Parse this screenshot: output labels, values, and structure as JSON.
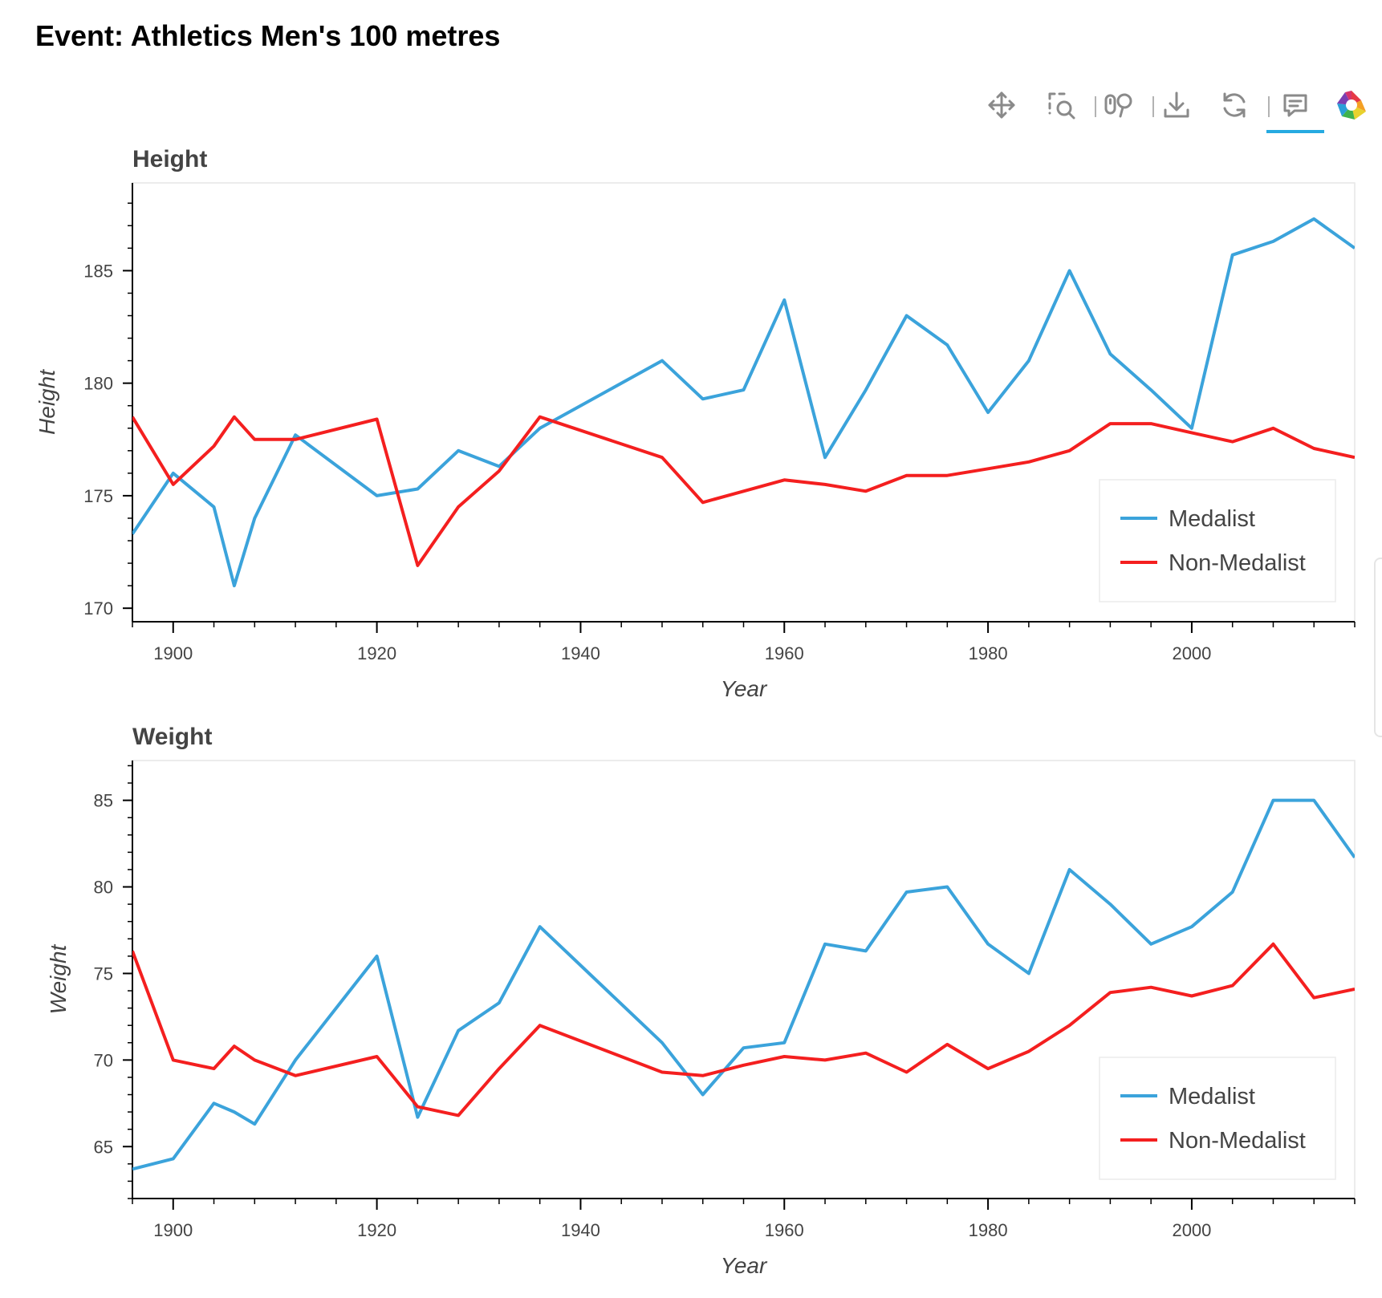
{
  "page_title": "Event: Athletics Men's 100 metres",
  "toolbar": {
    "tools": [
      {
        "icon": "pan-icon",
        "active": true
      },
      {
        "icon": "box-zoom-icon",
        "active": false
      },
      {
        "icon": "wheel-zoom-icon",
        "active": false
      },
      {
        "icon": "save-icon",
        "active": false
      },
      {
        "icon": "reset-icon",
        "active": false
      },
      {
        "icon": "hover-icon",
        "active": true
      },
      {
        "icon": "bokeh-logo-icon",
        "active": false
      }
    ]
  },
  "colors": {
    "medalist": "#3ba3db",
    "non_medalist": "#f41f1f",
    "accent": "#26aae1"
  },
  "chart_data": [
    {
      "type": "line",
      "title": "Height",
      "xlabel": "Year",
      "ylabel": "Height",
      "xlim": [
        1896,
        2016
      ],
      "ylim": [
        169.4,
        188.9
      ],
      "yticks": [
        170,
        175,
        180,
        185
      ],
      "xticks": [
        1900,
        1920,
        1940,
        1960,
        1980,
        2000
      ],
      "legend_position": "bottom-right",
      "series": [
        {
          "name": "Medalist",
          "color": "#3ba3db",
          "x": [
            1896,
            1900,
            1904,
            1906,
            1908,
            1912,
            1920,
            1924,
            1928,
            1932,
            1936,
            1948,
            1952,
            1956,
            1960,
            1964,
            1968,
            1972,
            1976,
            1980,
            1984,
            1988,
            1992,
            1996,
            2000,
            2004,
            2008,
            2012,
            2016
          ],
          "y": [
            173.3,
            176.0,
            174.5,
            171.0,
            174.0,
            177.7,
            175.0,
            175.3,
            177.0,
            176.3,
            178.0,
            181.0,
            179.3,
            179.7,
            183.7,
            176.7,
            179.7,
            183.0,
            181.7,
            178.7,
            181.0,
            185.0,
            181.3,
            179.7,
            178.0,
            185.7,
            186.3,
            187.3,
            186.0
          ]
        },
        {
          "name": "Non-Medalist",
          "color": "#f41f1f",
          "x": [
            1896,
            1900,
            1904,
            1906,
            1908,
            1912,
            1920,
            1924,
            1928,
            1932,
            1936,
            1948,
            1952,
            1956,
            1960,
            1964,
            1968,
            1972,
            1976,
            1980,
            1984,
            1988,
            1992,
            1996,
            2000,
            2004,
            2008,
            2012,
            2016
          ],
          "y": [
            178.5,
            175.5,
            177.2,
            178.5,
            177.5,
            177.5,
            178.4,
            171.9,
            174.5,
            176.1,
            178.5,
            176.7,
            174.7,
            175.2,
            175.7,
            175.5,
            175.2,
            175.9,
            175.9,
            176.2,
            176.5,
            177.0,
            178.2,
            178.2,
            177.8,
            177.4,
            178.0,
            177.1,
            176.7
          ]
        }
      ]
    },
    {
      "type": "line",
      "title": "Weight",
      "xlabel": "Year",
      "ylabel": "Weight",
      "xlim": [
        1896,
        2016
      ],
      "ylim": [
        62.0,
        87.3
      ],
      "yticks": [
        65,
        70,
        75,
        80,
        85
      ],
      "xticks": [
        1900,
        1920,
        1940,
        1960,
        1980,
        2000
      ],
      "legend_position": "bottom-right",
      "series": [
        {
          "name": "Medalist",
          "color": "#3ba3db",
          "x": [
            1896,
            1900,
            1904,
            1906,
            1908,
            1912,
            1920,
            1924,
            1928,
            1932,
            1936,
            1948,
            1952,
            1956,
            1960,
            1964,
            1968,
            1972,
            1976,
            1980,
            1984,
            1988,
            1992,
            1996,
            2000,
            2004,
            2008,
            2012,
            2016
          ],
          "y": [
            63.7,
            64.3,
            67.5,
            67.0,
            66.3,
            70.0,
            76.0,
            66.7,
            71.7,
            73.3,
            77.7,
            71.0,
            68.0,
            70.7,
            71.0,
            76.7,
            76.3,
            79.7,
            80.0,
            76.7,
            75.0,
            81.0,
            79.0,
            76.7,
            77.7,
            79.7,
            85.0,
            85.0,
            81.7
          ]
        },
        {
          "name": "Non-Medalist",
          "color": "#f41f1f",
          "x": [
            1896,
            1900,
            1904,
            1906,
            1908,
            1912,
            1920,
            1924,
            1928,
            1932,
            1936,
            1948,
            1952,
            1956,
            1960,
            1964,
            1968,
            1972,
            1976,
            1980,
            1984,
            1988,
            1992,
            1996,
            2000,
            2004,
            2008,
            2012,
            2016
          ],
          "y": [
            76.3,
            70.0,
            69.5,
            70.8,
            70.0,
            69.1,
            70.2,
            67.3,
            66.8,
            69.5,
            72.0,
            69.3,
            69.1,
            69.7,
            70.2,
            70.0,
            70.4,
            69.3,
            70.9,
            69.5,
            70.5,
            72.0,
            73.9,
            74.2,
            73.7,
            74.3,
            76.7,
            73.6,
            74.1
          ]
        }
      ]
    }
  ]
}
